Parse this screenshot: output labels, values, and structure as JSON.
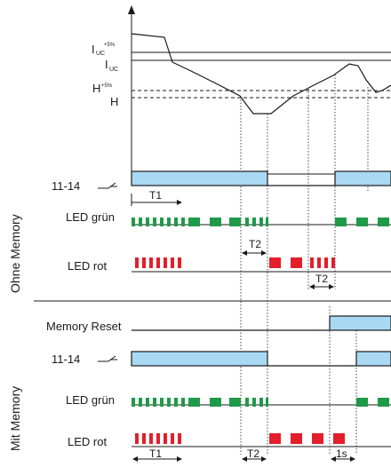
{
  "levels": {
    "iuc_plus": {
      "main": "I",
      "sub": "UC",
      "sup": "+5%"
    },
    "iuc": {
      "main": "I",
      "sub": "UC"
    },
    "h_plus": {
      "main": "H",
      "sup": "+5%"
    },
    "h": "H"
  },
  "sections": {
    "without_memory": "Ohne Memory",
    "with_memory": "Mit Memory"
  },
  "rows": {
    "relay_1": "11-14",
    "led_green_1": "LED grün",
    "led_red_1": "LED rot",
    "memory_reset": "Memory Reset",
    "relay_2": "11-14",
    "led_green_2": "LED grün",
    "led_red_2": "LED rot"
  },
  "timings": {
    "t1_upper": "T1",
    "t2_upper_a": "T2",
    "t2_upper_b": "T2",
    "t1_lower": "T1",
    "t2_lower": "T2",
    "one_s": "1s"
  },
  "colors": {
    "relay_fill": "#a9d8f3",
    "led_green": "#1f9a48",
    "led_red": "#e41e2a"
  }
}
